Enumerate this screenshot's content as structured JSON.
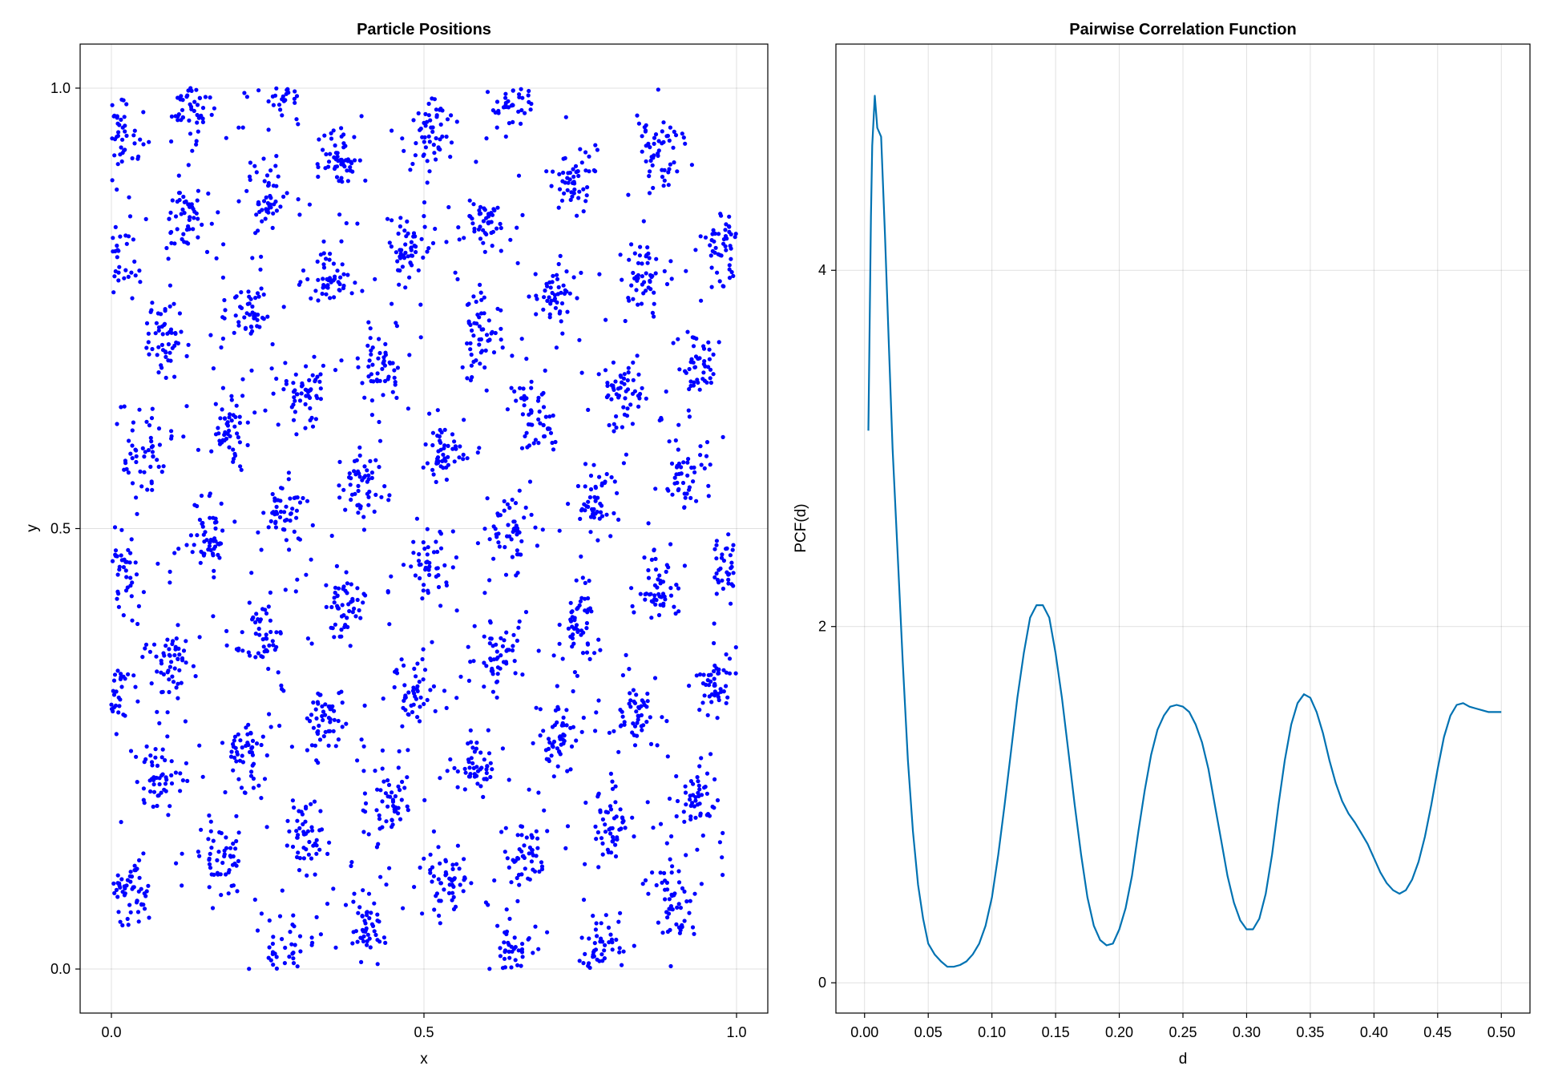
{
  "chart_data": [
    {
      "type": "scatter",
      "title": "Particle Positions",
      "xlabel": "x",
      "ylabel": "y",
      "xlim": [
        -0.05,
        1.05
      ],
      "ylim": [
        -0.05,
        1.05
      ],
      "xticks": [
        0.0,
        0.5,
        1.0
      ],
      "xtick_labels": [
        "0.0",
        "0.5",
        "1.0"
      ],
      "yticks": [
        0.0,
        0.5,
        1.0
      ],
      "ytick_labels": [
        "0.0",
        "0.5",
        "1.0"
      ],
      "grid": true,
      "point_color": "#0000ff",
      "clusters": [
        [
          0.012,
          0.945
        ],
        [
          0.13,
          0.975
        ],
        [
          0.275,
          0.995
        ],
        [
          0.51,
          0.955
        ],
        [
          0.64,
          0.99
        ],
        [
          0.88,
          0.92
        ],
        [
          0.36,
          0.915
        ],
        [
          0.74,
          0.895
        ],
        [
          0.245,
          0.875
        ],
        [
          0.6,
          0.85
        ],
        [
          0.12,
          0.85
        ],
        [
          0.477,
          0.82
        ],
        [
          0.975,
          0.825
        ],
        [
          0.85,
          0.785
        ],
        [
          0.35,
          0.78
        ],
        [
          0.71,
          0.765
        ],
        [
          0.215,
          0.75
        ],
        [
          0.59,
          0.72
        ],
        [
          0.085,
          0.715
        ],
        [
          0.94,
          0.69
        ],
        [
          0.43,
          0.685
        ],
        [
          0.31,
          0.655
        ],
        [
          0.82,
          0.65
        ],
        [
          0.68,
          0.625
        ],
        [
          0.19,
          0.61
        ],
        [
          0.53,
          0.59
        ],
        [
          0.045,
          0.59
        ],
        [
          0.92,
          0.56
        ],
        [
          0.405,
          0.545
        ],
        [
          0.77,
          0.53
        ],
        [
          0.28,
          0.51
        ],
        [
          0.155,
          0.485
        ],
        [
          0.64,
          0.495
        ],
        [
          0.01,
          0.45
        ],
        [
          0.51,
          0.455
        ],
        [
          0.995,
          0.455
        ],
        [
          0.875,
          0.43
        ],
        [
          0.375,
          0.41
        ],
        [
          0.745,
          0.39
        ],
        [
          0.24,
          0.38
        ],
        [
          0.1,
          0.35
        ],
        [
          0.61,
          0.355
        ],
        [
          0.965,
          0.325
        ],
        [
          0.48,
          0.315
        ],
        [
          0.84,
          0.29
        ],
        [
          0.345,
          0.28
        ],
        [
          0.715,
          0.265
        ],
        [
          0.21,
          0.25
        ],
        [
          0.075,
          0.215
        ],
        [
          0.585,
          0.225
        ],
        [
          0.935,
          0.195
        ],
        [
          0.44,
          0.19
        ],
        [
          0.8,
          0.165
        ],
        [
          0.31,
          0.15
        ],
        [
          0.665,
          0.135
        ],
        [
          0.175,
          0.125
        ],
        [
          0.54,
          0.1
        ],
        [
          0.03,
          0.085
        ],
        [
          0.905,
          0.075
        ],
        [
          0.41,
          0.045
        ],
        [
          0.78,
          0.03
        ],
        [
          0.27,
          0.015
        ],
        [
          0.645,
          0.01
        ],
        [
          0.005,
          0.8
        ],
        [
          0.0,
          0.31
        ]
      ]
    },
    {
      "type": "line",
      "title": "Pairwise Correlation Function",
      "xlabel": "d",
      "ylabel": "PCF(d)",
      "xlim": [
        -0.0225,
        0.5225
      ],
      "ylim": [
        -0.17,
        5.27
      ],
      "xticks": [
        0.0,
        0.05,
        0.1,
        0.15,
        0.2,
        0.25,
        0.3,
        0.35,
        0.4,
        0.45,
        0.5
      ],
      "xtick_labels": [
        "0.00",
        "0.05",
        "0.10",
        "0.15",
        "0.20",
        "0.25",
        "0.30",
        "0.35",
        "0.40",
        "0.45",
        "0.50"
      ],
      "yticks": [
        0,
        2,
        4
      ],
      "ytick_labels": [
        "0",
        "2",
        "4"
      ],
      "grid": true,
      "line_color": "#0072b2",
      "series": [
        {
          "x": [
            0.003,
            0.005,
            0.006,
            0.008,
            0.01,
            0.013,
            0.016,
            0.019,
            0.022,
            0.026,
            0.03,
            0.034,
            0.038,
            0.042,
            0.046,
            0.05,
            0.055,
            0.06,
            0.065,
            0.07,
            0.075,
            0.08,
            0.085,
            0.09,
            0.095,
            0.1,
            0.105,
            0.11,
            0.115,
            0.12,
            0.125,
            0.13,
            0.135,
            0.14,
            0.145,
            0.15,
            0.155,
            0.16,
            0.165,
            0.17,
            0.175,
            0.18,
            0.185,
            0.19,
            0.195,
            0.2,
            0.205,
            0.21,
            0.215,
            0.22,
            0.225,
            0.23,
            0.235,
            0.24,
            0.245,
            0.25,
            0.255,
            0.26,
            0.265,
            0.27,
            0.275,
            0.28,
            0.285,
            0.29,
            0.295,
            0.3,
            0.305,
            0.31,
            0.315,
            0.32,
            0.325,
            0.33,
            0.335,
            0.34,
            0.345,
            0.35,
            0.355,
            0.36,
            0.365,
            0.37,
            0.375,
            0.38,
            0.385,
            0.39,
            0.395,
            0.4,
            0.405,
            0.41,
            0.415,
            0.42,
            0.425,
            0.43,
            0.435,
            0.44,
            0.445,
            0.45,
            0.455,
            0.46,
            0.465,
            0.47,
            0.475,
            0.48,
            0.485,
            0.49,
            0.495,
            0.5
          ],
          "y": [
            3.1,
            4.3,
            4.7,
            4.98,
            4.8,
            4.75,
            4.2,
            3.6,
            3.0,
            2.4,
            1.8,
            1.25,
            0.85,
            0.55,
            0.36,
            0.22,
            0.16,
            0.12,
            0.09,
            0.09,
            0.1,
            0.12,
            0.16,
            0.22,
            0.32,
            0.48,
            0.72,
            1.0,
            1.3,
            1.6,
            1.85,
            2.05,
            2.12,
            2.12,
            2.05,
            1.85,
            1.6,
            1.3,
            1.0,
            0.72,
            0.48,
            0.32,
            0.24,
            0.21,
            0.22,
            0.3,
            0.42,
            0.6,
            0.85,
            1.08,
            1.28,
            1.42,
            1.5,
            1.55,
            1.56,
            1.55,
            1.52,
            1.45,
            1.35,
            1.2,
            1.0,
            0.8,
            0.6,
            0.45,
            0.35,
            0.3,
            0.3,
            0.36,
            0.5,
            0.72,
            1.0,
            1.25,
            1.45,
            1.57,
            1.62,
            1.6,
            1.52,
            1.4,
            1.25,
            1.12,
            1.02,
            0.95,
            0.9,
            0.84,
            0.78,
            0.7,
            0.62,
            0.56,
            0.52,
            0.5,
            0.52,
            0.58,
            0.68,
            0.82,
            1.0,
            1.2,
            1.38,
            1.5,
            1.56,
            1.57,
            1.55,
            1.54,
            1.53,
            1.52,
            1.52,
            1.52
          ]
        }
      ]
    }
  ]
}
